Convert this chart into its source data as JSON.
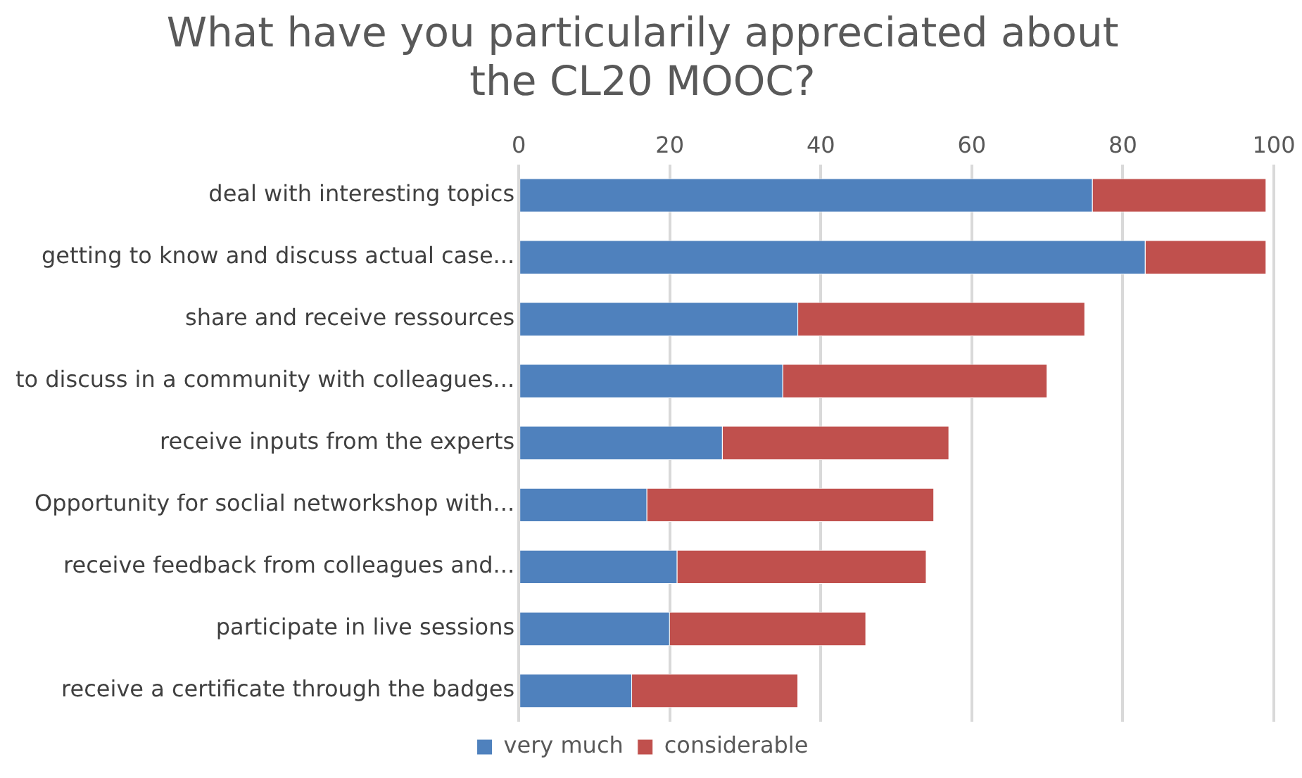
{
  "chart_data": {
    "type": "bar",
    "orientation": "horizontal",
    "stacked": true,
    "title": "What have you particularily appreciated about the CL20 MOOC?",
    "categories": [
      "deal with interesting topics",
      "getting to know and discuss actual case...",
      "share and receive ressources",
      "to discuss in a community with colleagues...",
      "receive inputs from the experts",
      "Opportunity for soclial networkshop with...",
      "receive feedback from colleagues and...",
      "participate in live sessions",
      "receive a certificate through the badges"
    ],
    "series": [
      {
        "name": "very much",
        "color": "#4f81bd",
        "values": [
          76,
          83,
          37,
          35,
          27,
          17,
          21,
          20,
          15
        ]
      },
      {
        "name": "considerable",
        "color": "#c0504d",
        "values": [
          23,
          16,
          38,
          35,
          30,
          38,
          33,
          26,
          22
        ]
      }
    ],
    "xlim": [
      0,
      100
    ],
    "xticks": [
      0,
      20,
      40,
      60,
      80,
      100
    ],
    "grid": "x",
    "legend": "bottom"
  }
}
